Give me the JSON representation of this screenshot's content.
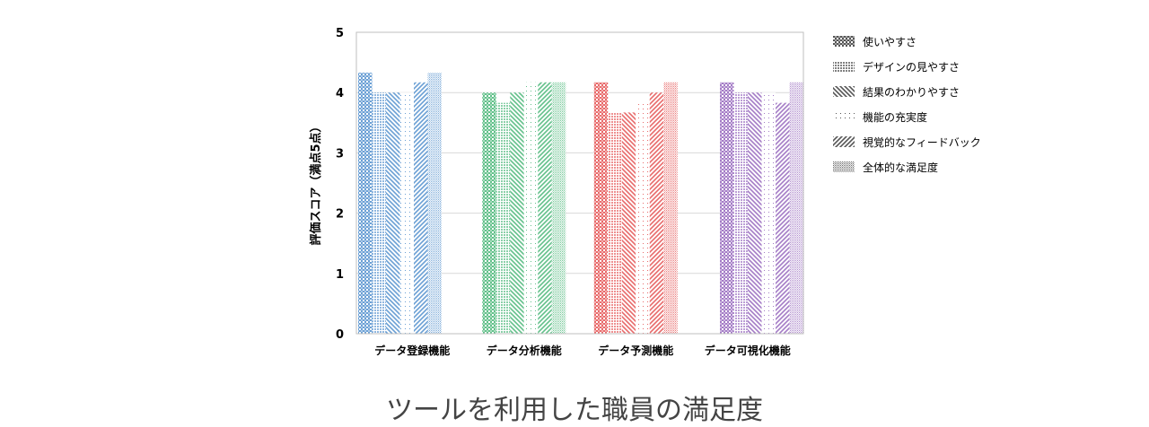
{
  "caption": "ツールを利用した職員の満足度",
  "chart_data": {
    "type": "bar",
    "ylabel": "評価スコア（満点5点）",
    "ylim": [
      0,
      5
    ],
    "yticks": [
      0,
      1,
      2,
      3,
      4,
      5
    ],
    "grid": true,
    "legend_position": "right",
    "categories": [
      "データ登録機能",
      "データ分析機能",
      "データ予測機能",
      "データ可視化機能"
    ],
    "category_colors": [
      "#6a9fd4",
      "#62c08a",
      "#e86a6a",
      "#a47cc6"
    ],
    "series": [
      {
        "name": "使いやすさ",
        "pattern": "checker",
        "values": [
          4.33,
          4.0,
          4.17,
          4.17
        ]
      },
      {
        "name": "デザインの見やすさ",
        "pattern": "dense-dots",
        "values": [
          4.0,
          3.83,
          3.67,
          4.0
        ]
      },
      {
        "name": "結果のわかりやすさ",
        "pattern": "backslash",
        "values": [
          4.0,
          4.0,
          3.67,
          4.0
        ]
      },
      {
        "name": "機能の充実度",
        "pattern": "sparse-dots",
        "values": [
          4.0,
          4.17,
          3.83,
          4.0
        ]
      },
      {
        "name": "視覚的なフィードバック",
        "pattern": "slash",
        "values": [
          4.17,
          4.17,
          4.0,
          3.83
        ]
      },
      {
        "name": "全体的な満足度",
        "pattern": "fine-dots",
        "values": [
          4.33,
          4.17,
          4.17,
          4.17
        ]
      }
    ]
  }
}
